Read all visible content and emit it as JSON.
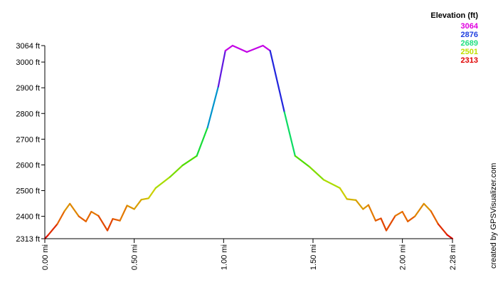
{
  "chart_data": {
    "type": "line",
    "title": "",
    "xlabel": "",
    "ylabel": "",
    "xlim": [
      0,
      2.28
    ],
    "ylim": [
      2313,
      3064
    ],
    "y_ticks": [
      {
        "value": 2313,
        "label": "2313 ft"
      },
      {
        "value": 2400,
        "label": "2400 ft"
      },
      {
        "value": 2500,
        "label": "2500 ft"
      },
      {
        "value": 2600,
        "label": "2600 ft"
      },
      {
        "value": 2700,
        "label": "2700 ft"
      },
      {
        "value": 2800,
        "label": "2800 ft"
      },
      {
        "value": 2900,
        "label": "2900 ft"
      },
      {
        "value": 3000,
        "label": "3000 ft"
      },
      {
        "value": 3064,
        "label": "3064 ft"
      }
    ],
    "x_ticks": [
      {
        "value": 0.0,
        "label": "0.00 mi"
      },
      {
        "value": 0.5,
        "label": "0.50 mi"
      },
      {
        "value": 1.0,
        "label": "1.00 mi"
      },
      {
        "value": 1.5,
        "label": "1.50 mi"
      },
      {
        "value": 2.0,
        "label": "2.00 mi"
      },
      {
        "value": 2.28,
        "label": "2.28 mi"
      }
    ],
    "legend": {
      "title": "Elevation (ft)",
      "position": "top-right",
      "entries": [
        {
          "label": "3064",
          "color": "#e000e0"
        },
        {
          "label": "2876",
          "color": "#2040e0"
        },
        {
          "label": "2689",
          "color": "#20e080"
        },
        {
          "label": "2501",
          "color": "#c0e000"
        },
        {
          "label": "2313",
          "color": "#e00000"
        }
      ]
    },
    "credit": "created by GPSVisualizer.com",
    "grid": false,
    "x": [
      0.0,
      0.02,
      0.07,
      0.11,
      0.14,
      0.19,
      0.23,
      0.26,
      0.3,
      0.35,
      0.38,
      0.42,
      0.46,
      0.5,
      0.54,
      0.58,
      0.62,
      0.7,
      0.77,
      0.85,
      0.91,
      0.97,
      1.01,
      1.05,
      1.13,
      1.22,
      1.26,
      1.34,
      1.4,
      1.48,
      1.56,
      1.65,
      1.69,
      1.74,
      1.78,
      1.81,
      1.85,
      1.88,
      1.91,
      1.96,
      2.0,
      2.03,
      2.07,
      2.12,
      2.16,
      2.2,
      2.25,
      2.28
    ],
    "y": [
      2313,
      2328,
      2370,
      2420,
      2449,
      2400,
      2380,
      2418,
      2402,
      2345,
      2390,
      2383,
      2442,
      2428,
      2465,
      2470,
      2510,
      2553,
      2598,
      2635,
      2745,
      2904,
      3044,
      3064,
      3039,
      3064,
      3044,
      2805,
      2635,
      2593,
      2542,
      2510,
      2467,
      2463,
      2428,
      2444,
      2383,
      2392,
      2345,
      2402,
      2418,
      2380,
      2400,
      2449,
      2420,
      2370,
      2328,
      2313
    ]
  }
}
